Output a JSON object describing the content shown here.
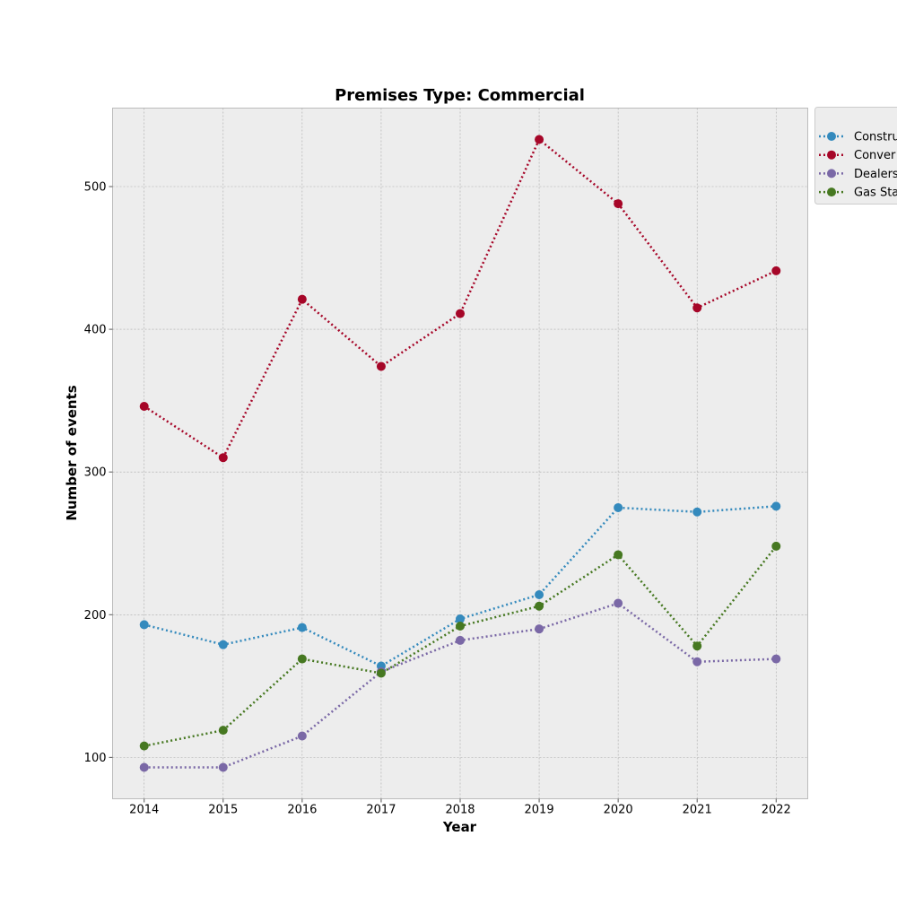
{
  "chart_data": {
    "type": "line",
    "title": "Premises Type: Commercial",
    "xlabel": "Year",
    "ylabel": "Number of events",
    "x": [
      2014,
      2015,
      2016,
      2017,
      2018,
      2019,
      2020,
      2021,
      2022
    ],
    "xlim": [
      2013.6,
      2022.4
    ],
    "ylim": [
      71,
      555
    ],
    "yticks": [
      100,
      200,
      300,
      400,
      500
    ],
    "grid": true,
    "legend_position": "upper right, outside plot",
    "line_style": "dotted",
    "marker": "circle",
    "background_color": "#EDEDED",
    "series": [
      {
        "name": "Construction",
        "legend_label": "Constru",
        "color": "#348ABD",
        "values": [
          193,
          179,
          191,
          164,
          197,
          214,
          275,
          272,
          276
        ]
      },
      {
        "name": "Convenience",
        "legend_label": "Conver",
        "color": "#A60628",
        "values": [
          346,
          310,
          421,
          374,
          411,
          533,
          488,
          415,
          441
        ]
      },
      {
        "name": "Dealers",
        "legend_label": "Dealers",
        "color": "#7A68A6",
        "values": [
          93,
          93,
          115,
          160,
          182,
          190,
          208,
          167,
          169
        ]
      },
      {
        "name": "Gas Station",
        "legend_label": "Gas Sta",
        "color": "#467821",
        "values": [
          108,
          119,
          169,
          159,
          192,
          206,
          242,
          178,
          248
        ]
      }
    ]
  }
}
